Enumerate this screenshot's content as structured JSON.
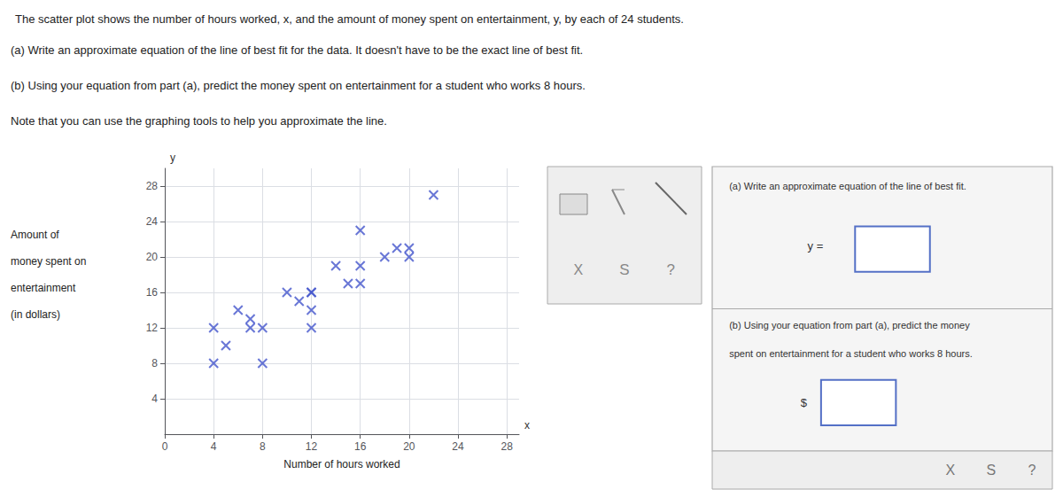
{
  "chart_data": {
    "type": "scatter",
    "title": "The scatter plot shows the number of hours worked, x, and the amount of money spent on entertainment, y, by each of 24 students.",
    "annotations": [
      "(a) Write an approximate equation of the line of best fit for the data. It doesn't have to be the exact line of best fit.",
      "(b) Using your equation from part (a), predict the money spent on entertainment for a student who works 8 hours.",
      "Note that you can use the graphing tools to help you approximate the line.",
      "x",
      "y",
      "(a) Write an approximate equation of the line of best fit.",
      "y = ",
      "(b) Using your equation from part (a), predict the money",
      "spent on entertainment for a student who works 8 hours.",
      "$",
      "X",
      "S",
      "?",
      "X",
      "S",
      "?"
    ],
    "xlabel": "Number of hours worked",
    "ylabel": [
      "Amount of",
      "money spent on",
      "entertainment",
      "(in dollars)"
    ],
    "x": [
      4,
      4,
      5,
      6,
      7,
      7,
      8,
      8,
      10,
      11,
      12,
      12,
      12,
      12,
      14,
      15,
      16,
      16,
      16,
      18,
      19,
      20,
      20,
      22
    ],
    "values": [
      8,
      12,
      10,
      14,
      12,
      13,
      8,
      12,
      16,
      15,
      12,
      14,
      16,
      16,
      19,
      17,
      17,
      19,
      23,
      20,
      21,
      20,
      21,
      27
    ],
    "color": "#4455cc",
    "marker": "x",
    "xlim": [
      0,
      29
    ],
    "ylim": [
      0,
      30
    ],
    "xticks": [
      0,
      4,
      8,
      12,
      16,
      20,
      24,
      28
    ],
    "yticks": [
      4,
      8,
      12,
      16,
      20,
      24,
      28
    ],
    "grid": true
  }
}
